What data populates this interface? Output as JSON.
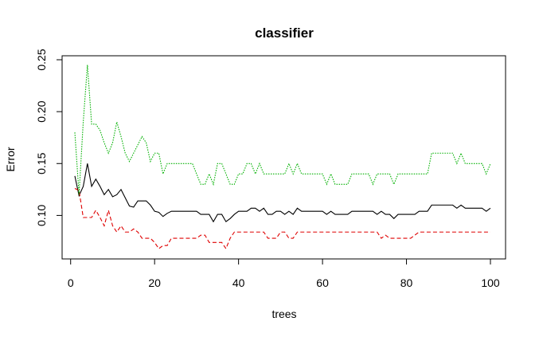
{
  "chart_data": {
    "type": "line",
    "title": "classifier",
    "xlabel": "trees",
    "ylabel": "Error",
    "xlim": [
      1,
      100
    ],
    "ylim": [
      0.065,
      0.25
    ],
    "xticks": [
      0,
      20,
      40,
      60,
      80,
      100
    ],
    "yticks": [
      0.1,
      0.15,
      0.2,
      0.25
    ],
    "xtick_labels": [
      "0",
      "20",
      "40",
      "60",
      "80",
      "100"
    ],
    "ytick_labels": [
      "0.10",
      "0.15",
      "0.20",
      "0.25"
    ],
    "grid": false,
    "legend": "none",
    "series": [
      {
        "color": "#000000",
        "dash": "solid",
        "points": [
          [
            1,
            0.138
          ],
          [
            2,
            0.119
          ],
          [
            3,
            0.128
          ],
          [
            4,
            0.15
          ],
          [
            5,
            0.128
          ],
          [
            6,
            0.135
          ],
          [
            7,
            0.128
          ],
          [
            8,
            0.12
          ],
          [
            9,
            0.125
          ],
          [
            10,
            0.118
          ],
          [
            11,
            0.12
          ],
          [
            12,
            0.125
          ],
          [
            13,
            0.117
          ],
          [
            14,
            0.109
          ],
          [
            15,
            0.108
          ],
          [
            16,
            0.114
          ],
          [
            17,
            0.114
          ],
          [
            18,
            0.114
          ],
          [
            19,
            0.11
          ],
          [
            20,
            0.104
          ],
          [
            21,
            0.103
          ],
          [
            22,
            0.099
          ],
          [
            23,
            0.102
          ],
          [
            24,
            0.104
          ],
          [
            25,
            0.104
          ],
          [
            26,
            0.104
          ],
          [
            27,
            0.104
          ],
          [
            28,
            0.104
          ],
          [
            29,
            0.104
          ],
          [
            30,
            0.104
          ],
          [
            31,
            0.101
          ],
          [
            32,
            0.101
          ],
          [
            33,
            0.101
          ],
          [
            34,
            0.094
          ],
          [
            35,
            0.101
          ],
          [
            36,
            0.101
          ],
          [
            37,
            0.094
          ],
          [
            38,
            0.097
          ],
          [
            39,
            0.101
          ],
          [
            40,
            0.104
          ],
          [
            41,
            0.104
          ],
          [
            42,
            0.104
          ],
          [
            43,
            0.107
          ],
          [
            44,
            0.107
          ],
          [
            45,
            0.104
          ],
          [
            46,
            0.107
          ],
          [
            47,
            0.101
          ],
          [
            48,
            0.101
          ],
          [
            49,
            0.104
          ],
          [
            50,
            0.104
          ],
          [
            51,
            0.101
          ],
          [
            52,
            0.104
          ],
          [
            53,
            0.101
          ],
          [
            54,
            0.107
          ],
          [
            55,
            0.104
          ],
          [
            56,
            0.104
          ],
          [
            57,
            0.104
          ],
          [
            58,
            0.104
          ],
          [
            59,
            0.104
          ],
          [
            60,
            0.104
          ],
          [
            61,
            0.101
          ],
          [
            62,
            0.104
          ],
          [
            63,
            0.101
          ],
          [
            64,
            0.101
          ],
          [
            65,
            0.101
          ],
          [
            66,
            0.101
          ],
          [
            67,
            0.104
          ],
          [
            68,
            0.104
          ],
          [
            69,
            0.104
          ],
          [
            70,
            0.104
          ],
          [
            71,
            0.104
          ],
          [
            72,
            0.104
          ],
          [
            73,
            0.101
          ],
          [
            74,
            0.104
          ],
          [
            75,
            0.101
          ],
          [
            76,
            0.101
          ],
          [
            77,
            0.097
          ],
          [
            78,
            0.101
          ],
          [
            79,
            0.101
          ],
          [
            80,
            0.101
          ],
          [
            81,
            0.101
          ],
          [
            82,
            0.101
          ],
          [
            83,
            0.104
          ],
          [
            84,
            0.104
          ],
          [
            85,
            0.104
          ],
          [
            86,
            0.11
          ],
          [
            87,
            0.11
          ],
          [
            88,
            0.11
          ],
          [
            89,
            0.11
          ],
          [
            90,
            0.11
          ],
          [
            91,
            0.11
          ],
          [
            92,
            0.107
          ],
          [
            93,
            0.11
          ],
          [
            94,
            0.107
          ],
          [
            95,
            0.107
          ],
          [
            96,
            0.107
          ],
          [
            97,
            0.107
          ],
          [
            98,
            0.107
          ],
          [
            99,
            0.104
          ],
          [
            100,
            0.107
          ]
        ]
      },
      {
        "color": "#df0000",
        "dash": "dashed",
        "points": [
          [
            1,
            0.126
          ],
          [
            2,
            0.124
          ],
          [
            3,
            0.098
          ],
          [
            4,
            0.098
          ],
          [
            5,
            0.098
          ],
          [
            6,
            0.105
          ],
          [
            7,
            0.098
          ],
          [
            8,
            0.09
          ],
          [
            9,
            0.105
          ],
          [
            10,
            0.09
          ],
          [
            11,
            0.084
          ],
          [
            12,
            0.09
          ],
          [
            13,
            0.084
          ],
          [
            14,
            0.084
          ],
          [
            15,
            0.087
          ],
          [
            16,
            0.084
          ],
          [
            17,
            0.078
          ],
          [
            18,
            0.078
          ],
          [
            19,
            0.078
          ],
          [
            20,
            0.074
          ],
          [
            21,
            0.068
          ],
          [
            22,
            0.071
          ],
          [
            23,
            0.071
          ],
          [
            24,
            0.078
          ],
          [
            25,
            0.078
          ],
          [
            26,
            0.078
          ],
          [
            27,
            0.078
          ],
          [
            28,
            0.078
          ],
          [
            29,
            0.078
          ],
          [
            30,
            0.078
          ],
          [
            31,
            0.081
          ],
          [
            32,
            0.081
          ],
          [
            33,
            0.074
          ],
          [
            34,
            0.074
          ],
          [
            35,
            0.074
          ],
          [
            36,
            0.074
          ],
          [
            37,
            0.068
          ],
          [
            38,
            0.078
          ],
          [
            39,
            0.084
          ],
          [
            40,
            0.084
          ],
          [
            41,
            0.084
          ],
          [
            42,
            0.084
          ],
          [
            43,
            0.084
          ],
          [
            44,
            0.084
          ],
          [
            45,
            0.084
          ],
          [
            46,
            0.084
          ],
          [
            47,
            0.078
          ],
          [
            48,
            0.078
          ],
          [
            49,
            0.078
          ],
          [
            50,
            0.084
          ],
          [
            51,
            0.084
          ],
          [
            52,
            0.078
          ],
          [
            53,
            0.078
          ],
          [
            54,
            0.084
          ],
          [
            55,
            0.084
          ],
          [
            56,
            0.084
          ],
          [
            57,
            0.084
          ],
          [
            58,
            0.084
          ],
          [
            59,
            0.084
          ],
          [
            60,
            0.084
          ],
          [
            61,
            0.084
          ],
          [
            62,
            0.084
          ],
          [
            63,
            0.084
          ],
          [
            64,
            0.084
          ],
          [
            65,
            0.084
          ],
          [
            66,
            0.084
          ],
          [
            67,
            0.084
          ],
          [
            68,
            0.084
          ],
          [
            69,
            0.084
          ],
          [
            70,
            0.084
          ],
          [
            71,
            0.084
          ],
          [
            72,
            0.084
          ],
          [
            73,
            0.084
          ],
          [
            74,
            0.078
          ],
          [
            75,
            0.081
          ],
          [
            76,
            0.078
          ],
          [
            77,
            0.078
          ],
          [
            78,
            0.078
          ],
          [
            79,
            0.078
          ],
          [
            80,
            0.078
          ],
          [
            81,
            0.078
          ],
          [
            82,
            0.081
          ],
          [
            83,
            0.084
          ],
          [
            84,
            0.084
          ],
          [
            85,
            0.084
          ],
          [
            86,
            0.084
          ],
          [
            87,
            0.084
          ],
          [
            88,
            0.084
          ],
          [
            89,
            0.084
          ],
          [
            90,
            0.084
          ],
          [
            91,
            0.084
          ],
          [
            92,
            0.084
          ],
          [
            93,
            0.084
          ],
          [
            94,
            0.084
          ],
          [
            95,
            0.084
          ],
          [
            96,
            0.084
          ],
          [
            97,
            0.084
          ],
          [
            98,
            0.084
          ],
          [
            99,
            0.084
          ],
          [
            100,
            0.084
          ]
        ]
      },
      {
        "color": "#00b000",
        "dash": "dotted",
        "points": [
          [
            1,
            0.18
          ],
          [
            2,
            0.12
          ],
          [
            3,
            0.19
          ],
          [
            4,
            0.245
          ],
          [
            5,
            0.188
          ],
          [
            6,
            0.188
          ],
          [
            7,
            0.182
          ],
          [
            8,
            0.17
          ],
          [
            9,
            0.16
          ],
          [
            10,
            0.17
          ],
          [
            11,
            0.19
          ],
          [
            12,
            0.176
          ],
          [
            13,
            0.16
          ],
          [
            14,
            0.152
          ],
          [
            15,
            0.16
          ],
          [
            16,
            0.168
          ],
          [
            17,
            0.176
          ],
          [
            18,
            0.17
          ],
          [
            19,
            0.152
          ],
          [
            20,
            0.16
          ],
          [
            21,
            0.16
          ],
          [
            22,
            0.14
          ],
          [
            23,
            0.15
          ],
          [
            24,
            0.15
          ],
          [
            25,
            0.15
          ],
          [
            26,
            0.15
          ],
          [
            27,
            0.15
          ],
          [
            28,
            0.15
          ],
          [
            29,
            0.15
          ],
          [
            30,
            0.14
          ],
          [
            31,
            0.13
          ],
          [
            32,
            0.13
          ],
          [
            33,
            0.14
          ],
          [
            34,
            0.13
          ],
          [
            35,
            0.15
          ],
          [
            36,
            0.15
          ],
          [
            37,
            0.14
          ],
          [
            38,
            0.13
          ],
          [
            39,
            0.13
          ],
          [
            40,
            0.14
          ],
          [
            41,
            0.14
          ],
          [
            42,
            0.15
          ],
          [
            43,
            0.15
          ],
          [
            44,
            0.14
          ],
          [
            45,
            0.15
          ],
          [
            46,
            0.14
          ],
          [
            47,
            0.14
          ],
          [
            48,
            0.14
          ],
          [
            49,
            0.14
          ],
          [
            50,
            0.14
          ],
          [
            51,
            0.14
          ],
          [
            52,
            0.15
          ],
          [
            53,
            0.14
          ],
          [
            54,
            0.15
          ],
          [
            55,
            0.14
          ],
          [
            56,
            0.14
          ],
          [
            57,
            0.14
          ],
          [
            58,
            0.14
          ],
          [
            59,
            0.14
          ],
          [
            60,
            0.14
          ],
          [
            61,
            0.13
          ],
          [
            62,
            0.14
          ],
          [
            63,
            0.13
          ],
          [
            64,
            0.13
          ],
          [
            65,
            0.13
          ],
          [
            66,
            0.13
          ],
          [
            67,
            0.14
          ],
          [
            68,
            0.14
          ],
          [
            69,
            0.14
          ],
          [
            70,
            0.14
          ],
          [
            71,
            0.14
          ],
          [
            72,
            0.13
          ],
          [
            73,
            0.14
          ],
          [
            74,
            0.14
          ],
          [
            75,
            0.14
          ],
          [
            76,
            0.14
          ],
          [
            77,
            0.13
          ],
          [
            78,
            0.14
          ],
          [
            79,
            0.14
          ],
          [
            80,
            0.14
          ],
          [
            81,
            0.14
          ],
          [
            82,
            0.14
          ],
          [
            83,
            0.14
          ],
          [
            84,
            0.14
          ],
          [
            85,
            0.14
          ],
          [
            86,
            0.16
          ],
          [
            87,
            0.16
          ],
          [
            88,
            0.16
          ],
          [
            89,
            0.16
          ],
          [
            90,
            0.16
          ],
          [
            91,
            0.16
          ],
          [
            92,
            0.15
          ],
          [
            93,
            0.16
          ],
          [
            94,
            0.15
          ],
          [
            95,
            0.15
          ],
          [
            96,
            0.15
          ],
          [
            97,
            0.15
          ],
          [
            98,
            0.15
          ],
          [
            99,
            0.14
          ],
          [
            100,
            0.15
          ]
        ]
      }
    ]
  }
}
